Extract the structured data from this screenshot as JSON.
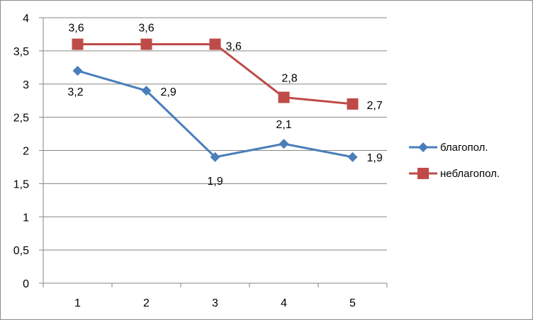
{
  "chart_data": {
    "type": "line",
    "categories": [
      "1",
      "2",
      "3",
      "4",
      "5"
    ],
    "ylim": [
      0,
      4
    ],
    "y_ticks": [
      "0",
      "0,5",
      "1",
      "1,5",
      "2",
      "2,5",
      "3",
      "3,5",
      "4"
    ],
    "grid": true,
    "legend_position": "right",
    "series": [
      {
        "name": "благопол.",
        "values": [
          3.2,
          2.9,
          1.9,
          2.1,
          1.9
        ],
        "data_labels": [
          "3,2",
          "2,9",
          "1,9",
          "2,1",
          "1,9"
        ],
        "color": "#4a7ebb",
        "marker": "diamond"
      },
      {
        "name": "неблагопол.",
        "values": [
          3.6,
          3.6,
          3.6,
          2.8,
          2.7
        ],
        "data_labels": [
          "3,6",
          "3,6",
          "3,6",
          "2,8",
          "2,7"
        ],
        "color": "#be4b48",
        "marker": "square"
      }
    ]
  }
}
